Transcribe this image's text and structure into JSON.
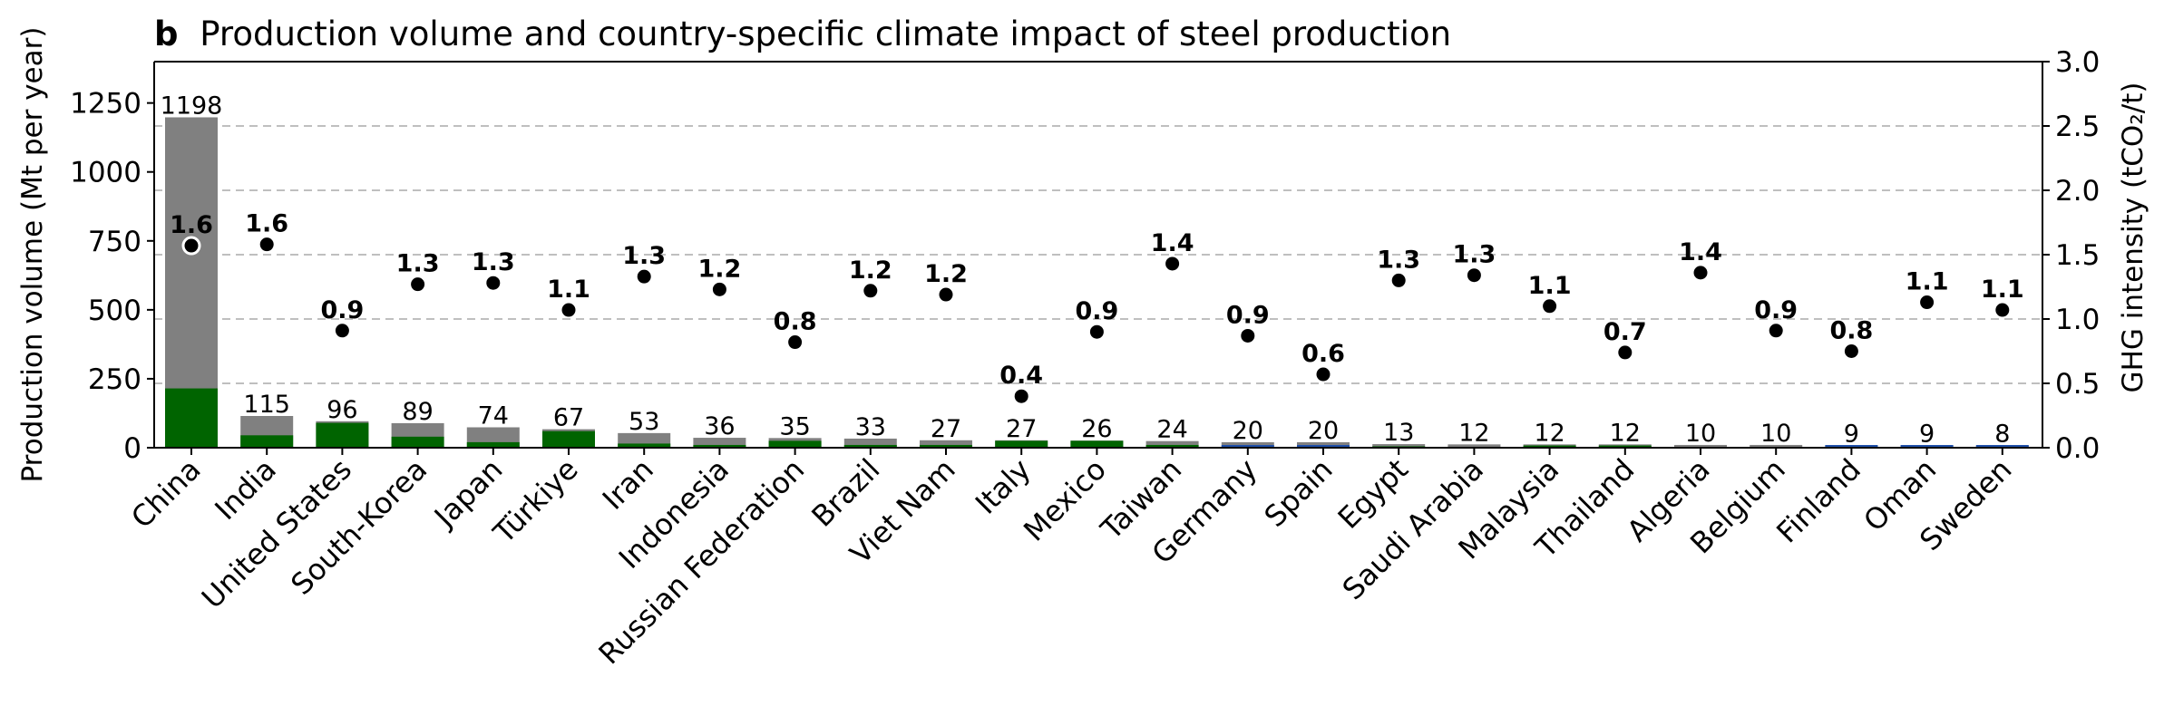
{
  "chart_data": {
    "type": "bar",
    "title_bold": "b",
    "title": "Production volume and country-specific climate impact of steel production",
    "ylabel_left": "Production volume (Mt per year)",
    "ylabel_right": "GHG intensity (tCO₂/t)",
    "ylim_left": [
      0,
      1400
    ],
    "ylim_right": [
      0,
      3.0
    ],
    "yticks_left": [
      "0",
      "250",
      "500",
      "750",
      "1000",
      "1250"
    ],
    "yticks_right": [
      "0.0",
      "0.5",
      "1.0",
      "1.5",
      "2.0",
      "2.5",
      "3.0"
    ],
    "grid": "horizontal dashed",
    "categories": [
      "China",
      "India",
      "United States",
      "South-Korea",
      "Japan",
      "Türkiye",
      "Iran",
      "Indonesia",
      "Russian Federation",
      "Brazil",
      "Viet Nam",
      "Italy",
      "Mexico",
      "Taiwan",
      "Germany",
      "Spain",
      "Egypt",
      "Saudi Arabia",
      "Malaysia",
      "Thailand",
      "Algeria",
      "Belgium",
      "Finland",
      "Oman",
      "Sweden"
    ],
    "production_volume": [
      1198,
      115,
      96,
      89,
      74,
      67,
      53,
      36,
      35,
      33,
      27,
      27,
      26,
      24,
      20,
      20,
      13,
      12,
      12,
      12,
      10,
      10,
      9,
      9,
      8
    ],
    "production_labels": [
      "1198",
      "115",
      "96",
      "89",
      "74",
      "67",
      "53",
      "36",
      "35",
      "33",
      "27",
      "27",
      "26",
      "24",
      "20",
      "20",
      "13",
      "12",
      "12",
      "12",
      "10",
      "10",
      "9",
      "9",
      "8"
    ],
    "bottom_segment_values": [
      215,
      45,
      90,
      40,
      20,
      60,
      15,
      10,
      25,
      10,
      10,
      25,
      25,
      10,
      0,
      0,
      5,
      3,
      8,
      8,
      3,
      3,
      0,
      0,
      0
    ],
    "ghg_intensity": [
      1.57,
      1.58,
      0.91,
      1.27,
      1.28,
      1.07,
      1.33,
      1.23,
      0.82,
      1.22,
      1.19,
      0.4,
      0.9,
      1.43,
      0.87,
      0.57,
      1.3,
      1.34,
      1.1,
      0.74,
      1.36,
      0.91,
      0.75,
      1.13,
      1.07
    ],
    "ghg_labels": [
      "1.6",
      "1.6",
      "0.9",
      "1.3",
      "1.3",
      "1.1",
      "1.3",
      "1.2",
      "0.8",
      "1.2",
      "1.2",
      "0.4",
      "0.9",
      "1.4",
      "0.9",
      "0.6",
      "1.3",
      "1.3",
      "1.1",
      "0.7",
      "1.4",
      "0.9",
      "0.8",
      "1.1",
      "1.1"
    ],
    "bottom_segment_colors": [
      "#006400",
      "#006400",
      "#006400",
      "#006400",
      "#006400",
      "#006400",
      "#006400",
      "#006400",
      "#006400",
      "#006400",
      "#006400",
      "#006400",
      "#006400",
      "#006400",
      "#1f4fa8",
      "#1f4fa8",
      "#006400",
      "#006400",
      "#006400",
      "#006400",
      "#006400",
      "#006400",
      "#1f4fa8",
      "#1f4fa8",
      "#1f4fa8"
    ],
    "colors": {
      "total_bar": "#808080",
      "green_segment": "#006400",
      "blue_segment": "#1f4fa8",
      "marker": "#000000",
      "grid": "#bfbfbf"
    }
  }
}
